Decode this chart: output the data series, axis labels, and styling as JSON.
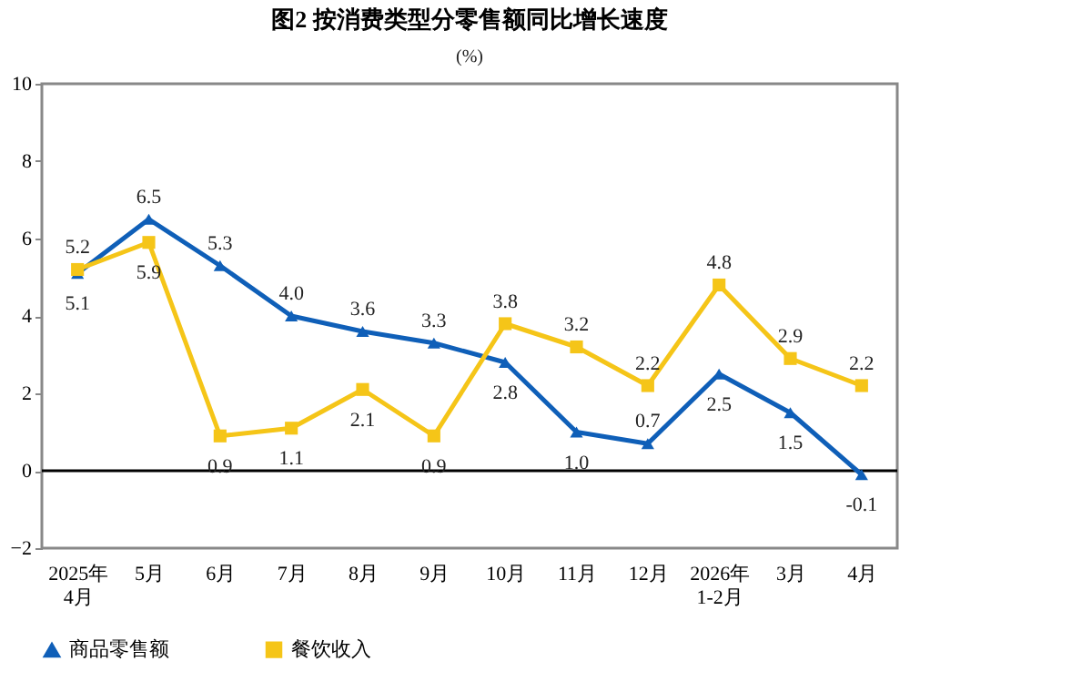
{
  "chart_data": {
    "type": "line",
    "title": "图2 按消费类型分零售额同比增长速度",
    "ylabel": "(%)",
    "categories": [
      "2025年\n4月",
      "5月",
      "6月",
      "7月",
      "8月",
      "9月",
      "10月",
      "11月",
      "12月",
      "2026年\n1-2月",
      "3月",
      "4月"
    ],
    "series": [
      {
        "name": "商品零售额",
        "color": "#0f5fb8",
        "marker": "triangle",
        "values": [
          5.1,
          6.5,
          5.3,
          4.0,
          3.6,
          3.3,
          2.8,
          1.0,
          0.7,
          2.5,
          1.5,
          -0.1
        ],
        "value_labels": [
          "5.1",
          "6.5",
          "5.3",
          "4.0",
          "3.6",
          "3.3",
          "2.8",
          "1.0",
          "0.7",
          "2.5",
          "1.5",
          "-0.1"
        ]
      },
      {
        "name": "餐饮收入",
        "color": "#f5c518",
        "marker": "square",
        "values": [
          5.2,
          5.9,
          0.9,
          1.1,
          2.1,
          0.9,
          3.8,
          3.2,
          2.2,
          4.8,
          2.9,
          2.2
        ],
        "value_labels": [
          "5.2",
          "5.9",
          "0.9",
          "1.1",
          "2.1",
          "0.9",
          "3.8",
          "3.2",
          "2.2",
          "4.8",
          "2.9",
          "2.2"
        ]
      }
    ],
    "ylim": [
      -2,
      10
    ],
    "yticks": [
      -2,
      0,
      2,
      4,
      6,
      8,
      10
    ],
    "grid": false,
    "legend": "bottom",
    "ref_lines": [
      {
        "axis": "y",
        "value": 0,
        "color": "#000000"
      }
    ]
  }
}
